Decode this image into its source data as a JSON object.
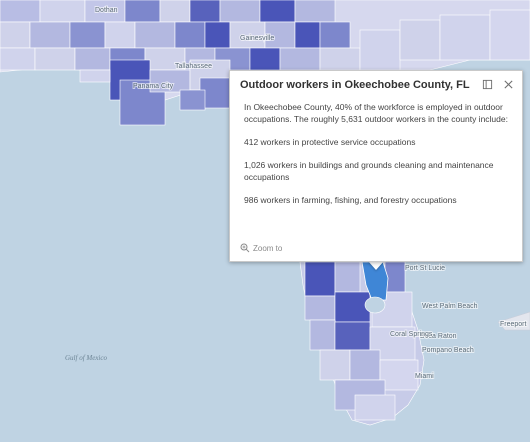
{
  "map": {
    "labels": {
      "dothan": "Dothan",
      "tallahassee": "Tallahassee",
      "panama_city": "Panama City",
      "gainesville": "Gainesville",
      "port_st_lucie": "Port St Lucie",
      "west_palm_beach": "West Palm Beach",
      "boca_raton": "Boca Raton",
      "pompano_beach": "Pompano Beach",
      "coral_springs": "Coral Springs",
      "miami": "Miami",
      "freeport": "Freeport",
      "gulf_of_mexico": "Gulf of Mexico"
    }
  },
  "popup": {
    "title": "Outdoor workers in Okeechobee County, FL",
    "intro": "In Okeechobee County, 40% of the workforce is employed in outdoor occupations. The roughly 5,631 outdoor workers in the county include:",
    "items": [
      "412 workers in protective service occupations",
      "1,026 workers in buildings and grounds cleaning and maintenance occupations",
      "986 workers in farming, fishing, and forestry occupations"
    ],
    "zoom_label": "Zoom to",
    "icons": {
      "dock": "dock-icon",
      "close": "close-icon",
      "zoom": "zoom-in-icon"
    }
  },
  "colors": {
    "water": "#bfd3e3",
    "highlight": "#3f86d6",
    "dark": "#4a55b8",
    "medium": "#7d87cc",
    "light": "#b3b8e0",
    "pale": "#cfd2ea"
  }
}
